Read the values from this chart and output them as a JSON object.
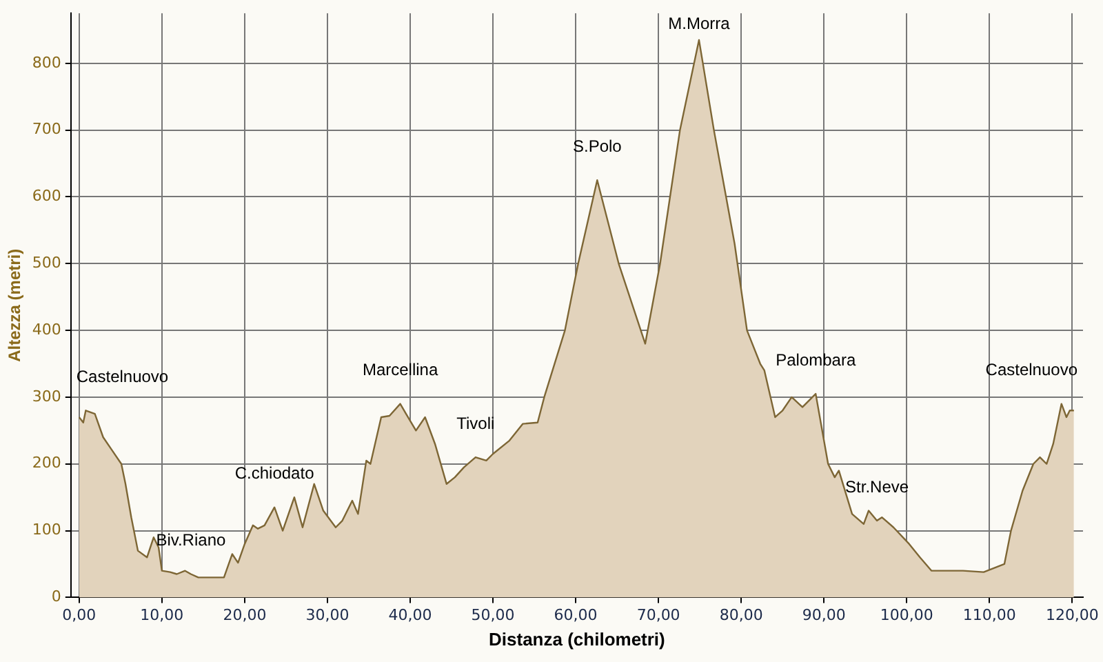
{
  "chart_data": {
    "type": "area",
    "xlabel": "Distanza (chilometri)",
    "ylabel": "Altezza (metri)",
    "x": [
      0,
      0.5,
      0.8,
      1.9,
      2.9,
      4,
      5.1,
      5.6,
      6.3,
      7.1,
      8.2,
      9,
      9.6,
      10,
      11,
      11.8,
      12.8,
      13.5,
      14.4,
      17.5,
      18.5,
      19.2,
      20,
      21,
      21.6,
      22.4,
      23.6,
      24.6,
      26,
      27,
      28.4,
      29.5,
      31,
      31.8,
      33,
      33.7,
      34.7,
      35.2,
      36.5,
      37.5,
      38.8,
      39.5,
      40.7,
      41.8,
      43,
      44.4,
      45.4,
      46.5,
      47.9,
      49.2,
      50,
      52,
      53.6,
      55.4,
      56.2,
      58.7,
      60.3,
      62.6,
      65.2,
      68.4,
      70.2,
      72.6,
      74.9,
      76.7,
      79.2,
      80.7,
      82.3,
      82.8,
      84.1,
      85,
      86.1,
      87.4,
      89,
      90.5,
      91.3,
      91.8,
      93.4,
      94.8,
      95.4,
      96.4,
      97,
      98.4,
      100.3,
      101.6,
      103,
      106.8,
      109.3,
      111.8,
      112.6,
      114,
      115.3,
      116.1,
      116.9,
      117.7,
      118.7,
      119.3,
      119.7,
      120.2
    ],
    "series": [
      {
        "color": "#7d6635",
        "values": [
          270,
          262,
          280,
          275,
          240,
          220,
          200,
          170,
          120,
          70,
          60,
          90,
          75,
          40,
          38,
          35,
          40,
          35,
          30,
          30,
          65,
          52,
          80,
          108,
          103,
          108,
          135,
          100,
          150,
          105,
          170,
          130,
          105,
          115,
          145,
          125,
          205,
          200,
          270,
          272,
          290,
          275,
          250,
          270,
          230,
          170,
          180,
          195,
          210,
          205,
          215,
          235,
          260,
          262,
          300,
          400,
          500,
          625,
          500,
          380,
          500,
          700,
          835,
          700,
          530,
          400,
          350,
          340,
          270,
          280,
          300,
          285,
          305,
          200,
          180,
          190,
          125,
          110,
          130,
          115,
          120,
          105,
          80,
          60,
          40,
          40,
          38,
          50,
          100,
          160,
          200,
          210,
          200,
          230,
          290,
          270,
          280,
          280
        ]
      }
    ],
    "xlim": [
      -1,
      121.3
    ],
    "ylim": [
      0,
      875
    ],
    "xticks": [
      {
        "value": 0,
        "label": "0,00"
      },
      {
        "value": 10,
        "label": "10,00"
      },
      {
        "value": 20,
        "label": "20,00"
      },
      {
        "value": 30,
        "label": "30,00"
      },
      {
        "value": 40,
        "label": "40,00"
      },
      {
        "value": 50,
        "label": "50,00"
      },
      {
        "value": 60,
        "label": "60,00"
      },
      {
        "value": 70,
        "label": "70,00"
      },
      {
        "value": 80,
        "label": "80,00"
      },
      {
        "value": 90,
        "label": "90,00"
      },
      {
        "value": 100,
        "label": "100,00"
      },
      {
        "value": 110,
        "label": "110,00"
      },
      {
        "value": 120,
        "label": "120,00"
      }
    ],
    "yticks": [
      0,
      100,
      200,
      300,
      400,
      500,
      600,
      700,
      800
    ],
    "grid": true,
    "legend": false,
    "annotations": [
      {
        "text": "Castelnuovo",
        "x": 0.8,
        "y": 280
      },
      {
        "text": "Biv.Riano",
        "x": 13.5,
        "y": 35
      },
      {
        "text": "C.chiodato",
        "x": 23.6,
        "y": 135
      },
      {
        "text": "Marcellina",
        "x": 38.8,
        "y": 290
      },
      {
        "text": "Tivoli",
        "x": 47.9,
        "y": 210
      },
      {
        "text": "S.Polo",
        "x": 62.6,
        "y": 625
      },
      {
        "text": "M.Morra",
        "x": 74.9,
        "y": 835
      },
      {
        "text": "Palombara",
        "x": 89,
        "y": 305
      },
      {
        "text": "Str.Neve",
        "x": 96.4,
        "y": 115
      },
      {
        "text": "Castelnuovo",
        "x": 118.7,
        "y": 290
      }
    ]
  }
}
